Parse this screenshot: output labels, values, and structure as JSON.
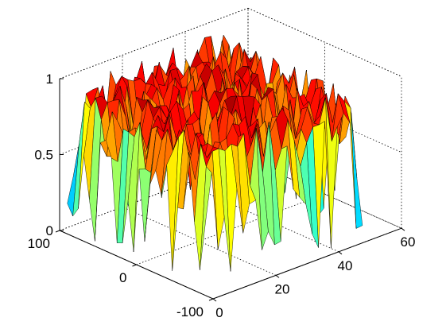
{
  "chart_data": {
    "type": "surface",
    "title": "",
    "xlabel": "",
    "ylabel": "",
    "zlabel": "",
    "x_ticks": [
      "0",
      "20",
      "40",
      "60"
    ],
    "y_ticks": [
      "-100",
      "0",
      "100"
    ],
    "z_ticks": [
      "0",
      "0.5",
      "1"
    ],
    "xlim": [
      0,
      60
    ],
    "ylim": [
      -100,
      100
    ],
    "zlim": [
      0,
      1
    ],
    "grid": true,
    "colormap": "jet",
    "surface": {
      "x_range": [
        0,
        50
      ],
      "y_range": [
        -90,
        90
      ],
      "z_description_values": {
        "min": 0,
        "max": 1,
        "typical_top": 0.85
      },
      "x_samples": 26,
      "y_samples": 26
    }
  }
}
